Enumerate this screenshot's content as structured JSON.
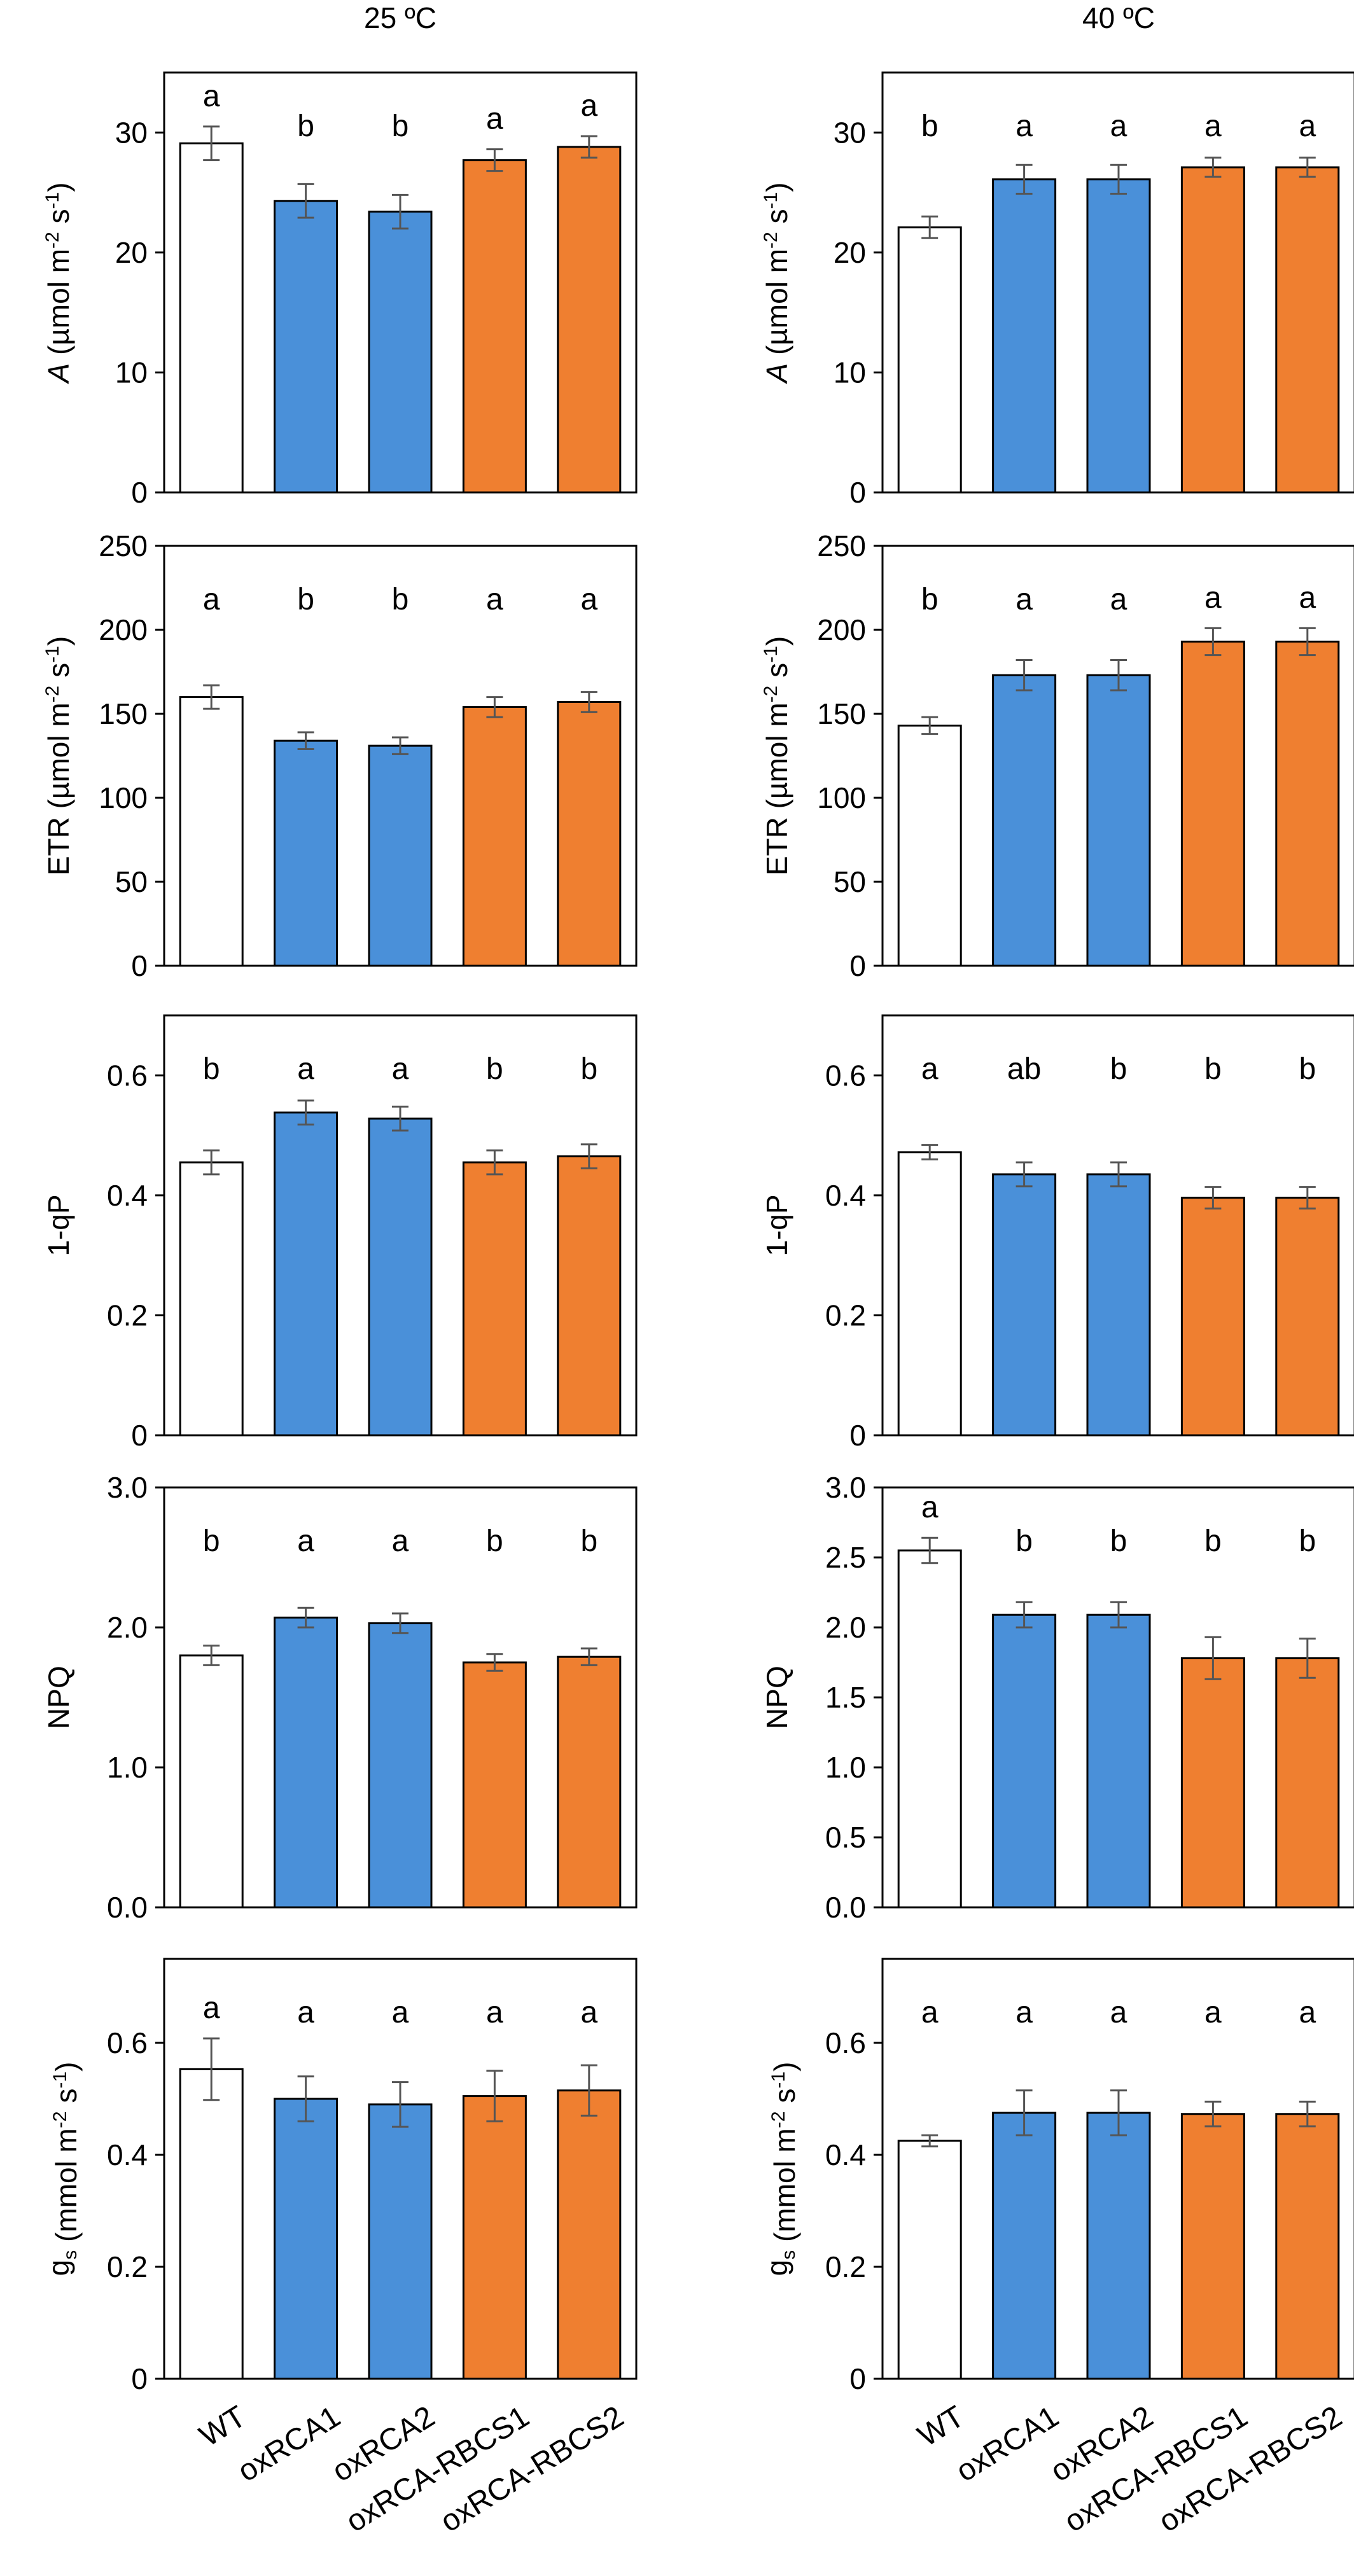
{
  "column_titles": [
    "25 ºC",
    "40 ºC"
  ],
  "colors": {
    "WT": "#ffffff",
    "oxRCA": "#4a90d9",
    "oxRCA-RBCS": "#ef7f30",
    "edge": "#000000",
    "error": "#555555"
  },
  "chart_data": [
    {
      "type": "bar",
      "column_title": "25 ºC",
      "ylabel": {
        "sym": "A",
        "unit_pre": " (µmol m",
        "sup1": "-2",
        "unit_mid": " s",
        "sup2": "-1",
        "unit_post": ")"
      },
      "categories": [
        "WT",
        "oxRCA1",
        "oxRCA2",
        "oxRCA-RBCS1",
        "oxRCA-RBCS2"
      ],
      "values": [
        29.1,
        24.3,
        23.4,
        27.7,
        28.8
      ],
      "errors": [
        1.4,
        1.4,
        1.4,
        0.9,
        0.9
      ],
      "letters": [
        "a",
        "b",
        "b",
        "a",
        "a"
      ],
      "ylim": [
        0,
        35
      ],
      "yticks": [
        0,
        10,
        20,
        30
      ],
      "tick_labels": [
        "0",
        "10",
        "20",
        "30"
      ]
    },
    {
      "type": "bar",
      "column_title": "40 ºC",
      "ylabel": {
        "sym": "A",
        "unit_pre": " (µmol m",
        "sup1": "-2",
        "unit_mid": " s",
        "sup2": "-1",
        "unit_post": ")"
      },
      "categories": [
        "WT",
        "oxRCA1",
        "oxRCA2",
        "oxRCA-RBCS1",
        "oxRCA-RBCS2"
      ],
      "values": [
        22.1,
        26.1,
        26.1,
        27.1,
        27.1
      ],
      "errors": [
        0.9,
        1.2,
        1.2,
        0.8,
        0.8
      ],
      "letters": [
        "b",
        "a",
        "a",
        "a",
        "a"
      ],
      "ylim": [
        0,
        35
      ],
      "yticks": [
        0,
        10,
        20,
        30
      ],
      "tick_labels": [
        "0",
        "10",
        "20",
        "30"
      ]
    },
    {
      "type": "bar",
      "column_title": "25 ºC",
      "ylabel": {
        "sym": "ETR",
        "unit_pre": " (µmol m",
        "sup1": "-2",
        "unit_mid": " s",
        "sup2": "-1",
        "unit_post": ")"
      },
      "categories": [
        "WT",
        "oxRCA1",
        "oxRCA2",
        "oxRCA-RBCS1",
        "oxRCA-RBCS2"
      ],
      "values": [
        160,
        134,
        131,
        154,
        157
      ],
      "errors": [
        7,
        5,
        5,
        6,
        6
      ],
      "letters": [
        "a",
        "b",
        "b",
        "a",
        "a"
      ],
      "ylim": [
        0,
        250
      ],
      "yticks": [
        0,
        50,
        100,
        150,
        200,
        250
      ],
      "tick_labels": [
        "0",
        "50",
        "100",
        "150",
        "200",
        "250"
      ]
    },
    {
      "type": "bar",
      "column_title": "40 ºC",
      "ylabel": {
        "sym": "ETR",
        "unit_pre": " (µmol m",
        "sup1": "-2",
        "unit_mid": " s",
        "sup2": "-1",
        "unit_post": ")"
      },
      "categories": [
        "WT",
        "oxRCA1",
        "oxRCA2",
        "oxRCA-RBCS1",
        "oxRCA-RBCS2"
      ],
      "values": [
        143,
        173,
        173,
        193,
        193
      ],
      "errors": [
        5,
        9,
        9,
        8,
        8
      ],
      "letters": [
        "b",
        "a",
        "a",
        "a",
        "a"
      ],
      "ylim": [
        0,
        250
      ],
      "yticks": [
        0,
        50,
        100,
        150,
        200,
        250
      ],
      "tick_labels": [
        "0",
        "50",
        "100",
        "150",
        "200",
        "250"
      ]
    },
    {
      "type": "bar",
      "column_title": "25 ºC",
      "ylabel": {
        "sym": "1-qP",
        "unit_pre": "",
        "sup1": "",
        "unit_mid": "",
        "sup2": "",
        "unit_post": ""
      },
      "categories": [
        "WT",
        "oxRCA1",
        "oxRCA2",
        "oxRCA-RBCS1",
        "oxRCA-RBCS2"
      ],
      "values": [
        0.455,
        0.538,
        0.528,
        0.455,
        0.465
      ],
      "errors": [
        0.02,
        0.02,
        0.02,
        0.02,
        0.02
      ],
      "letters": [
        "b",
        "a",
        "a",
        "b",
        "b"
      ],
      "ylim": [
        0,
        0.7
      ],
      "yticks": [
        0,
        0.2,
        0.4,
        0.6
      ],
      "tick_labels": [
        "0",
        "0.2",
        "0.4",
        "0.6"
      ]
    },
    {
      "type": "bar",
      "column_title": "40 ºC",
      "ylabel": {
        "sym": "1-qP",
        "unit_pre": "",
        "sup1": "",
        "unit_mid": "",
        "sup2": "",
        "unit_post": ""
      },
      "categories": [
        "WT",
        "oxRCA1",
        "oxRCA2",
        "oxRCA-RBCS1",
        "oxRCA-RBCS2"
      ],
      "values": [
        0.472,
        0.435,
        0.435,
        0.396,
        0.396
      ],
      "errors": [
        0.012,
        0.02,
        0.02,
        0.018,
        0.018
      ],
      "letters": [
        "a",
        "ab",
        "b",
        "b",
        "b"
      ],
      "ylim": [
        0,
        0.7
      ],
      "yticks": [
        0,
        0.2,
        0.4,
        0.6
      ],
      "tick_labels": [
        "0",
        "0.2",
        "0.4",
        "0.6"
      ]
    },
    {
      "type": "bar",
      "column_title": "25 ºC",
      "ylabel": {
        "sym": "NPQ",
        "unit_pre": "",
        "sup1": "",
        "unit_mid": "",
        "sup2": "",
        "unit_post": ""
      },
      "categories": [
        "WT",
        "oxRCA1",
        "oxRCA2",
        "oxRCA-RBCS1",
        "oxRCA-RBCS2"
      ],
      "values": [
        1.8,
        2.07,
        2.03,
        1.75,
        1.79
      ],
      "errors": [
        0.07,
        0.07,
        0.07,
        0.06,
        0.06
      ],
      "letters": [
        "b",
        "a",
        "a",
        "b",
        "b"
      ],
      "ylim": [
        0,
        3.0
      ],
      "yticks": [
        0,
        1.0,
        2.0,
        3.0
      ],
      "tick_labels": [
        "0.0",
        "1.0",
        "2.0",
        "3.0"
      ]
    },
    {
      "type": "bar",
      "column_title": "40 ºC",
      "ylabel": {
        "sym": "NPQ",
        "unit_pre": "",
        "sup1": "",
        "unit_mid": "",
        "sup2": "",
        "unit_post": ""
      },
      "categories": [
        "WT",
        "oxRCA1",
        "oxRCA2",
        "oxRCA-RBCS1",
        "oxRCA-RBCS2"
      ],
      "values": [
        2.55,
        2.09,
        2.09,
        1.78,
        1.78
      ],
      "errors": [
        0.09,
        0.09,
        0.09,
        0.15,
        0.14
      ],
      "letters": [
        "a",
        "b",
        "b",
        "b",
        "b"
      ],
      "ylim": [
        0,
        3.0
      ],
      "yticks": [
        0,
        0.5,
        1.0,
        1.5,
        2.0,
        2.5,
        3.0
      ],
      "tick_labels": [
        "0.0",
        "0.5",
        "1.0",
        "1.5",
        "2.0",
        "2.5",
        "3.0"
      ]
    },
    {
      "type": "bar",
      "column_title": "25 ºC",
      "ylabel": {
        "sym": "g",
        "subscript": "s",
        "unit_pre": " (mmol m",
        "sup1": "-2",
        "unit_mid": " s",
        "sup2": "-1",
        "unit_post": ")"
      },
      "categories": [
        "WT",
        "oxRCA1",
        "oxRCA2",
        "oxRCA-RBCS1",
        "oxRCA-RBCS2"
      ],
      "values": [
        0.553,
        0.5,
        0.49,
        0.505,
        0.515
      ],
      "errors": [
        0.055,
        0.04,
        0.04,
        0.045,
        0.045
      ],
      "letters": [
        "a",
        "a",
        "a",
        "a",
        "a"
      ],
      "ylim": [
        0,
        0.75
      ],
      "yticks": [
        0,
        0.2,
        0.4,
        0.6
      ],
      "tick_labels": [
        "0",
        "0.2",
        "0.4",
        "0.6"
      ]
    },
    {
      "type": "bar",
      "column_title": "40 ºC",
      "ylabel": {
        "sym": "g",
        "subscript": "s",
        "unit_pre": " (mmol m",
        "sup1": "-2",
        "unit_mid": " s",
        "sup2": "-1",
        "unit_post": ")"
      },
      "categories": [
        "WT",
        "oxRCA1",
        "oxRCA2",
        "oxRCA-RBCS1",
        "oxRCA-RBCS2"
      ],
      "values": [
        0.425,
        0.475,
        0.475,
        0.473,
        0.473
      ],
      "errors": [
        0.01,
        0.04,
        0.04,
        0.022,
        0.022
      ],
      "letters": [
        "a",
        "a",
        "a",
        "a",
        "a"
      ],
      "ylim": [
        0,
        0.75
      ],
      "yticks": [
        0,
        0.2,
        0.4,
        0.6
      ],
      "tick_labels": [
        "0",
        "0.2",
        "0.4",
        "0.6"
      ]
    }
  ]
}
